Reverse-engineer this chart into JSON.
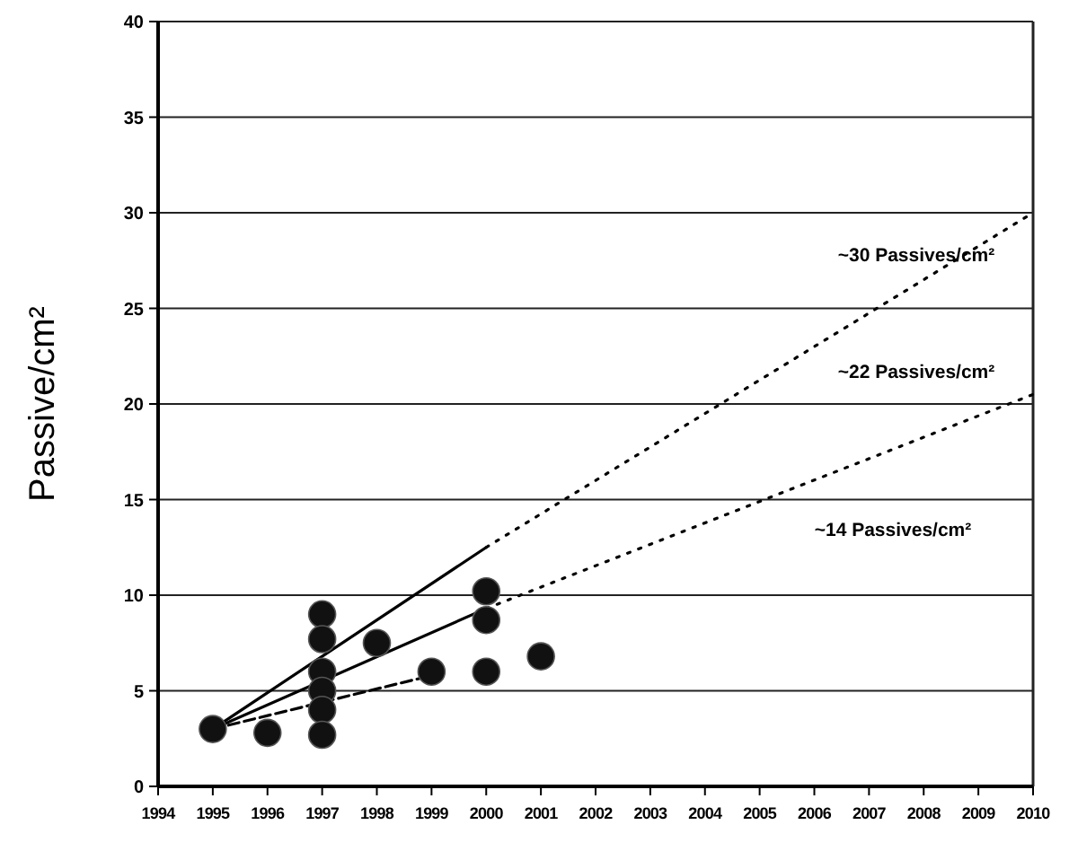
{
  "chart_data": {
    "type": "scatter",
    "ylabel": "Passive/cm²",
    "xlim": [
      1994,
      2010
    ],
    "xticks": [
      1994,
      1995,
      1996,
      1997,
      1998,
      1999,
      2000,
      2001,
      2002,
      2003,
      2004,
      2005,
      2006,
      2007,
      2008,
      2009,
      2010
    ],
    "ylim": [
      0,
      40
    ],
    "yticks": [
      0,
      5,
      10,
      15,
      20,
      25,
      30,
      35,
      40
    ],
    "grid": "y",
    "series": [
      {
        "type": "line",
        "color": "#000000",
        "line_style": "solid",
        "x": [
          1995,
          2000
        ],
        "values": [
          3,
          12.5
        ]
      },
      {
        "type": "line",
        "color": "#000000",
        "line_style": "dotted",
        "x": [
          2000,
          2010
        ],
        "values": [
          12.5,
          30
        ]
      },
      {
        "type": "line",
        "color": "#000000",
        "line_style": "solid",
        "x": [
          1995,
          2000
        ],
        "values": [
          3,
          9.3
        ]
      },
      {
        "type": "line",
        "color": "#000000",
        "line_style": "dotted",
        "x": [
          2000,
          2010
        ],
        "values": [
          9.3,
          20.5
        ]
      },
      {
        "type": "line",
        "color": "#000000",
        "line_style": "dashed",
        "x": [
          1995,
          1999
        ],
        "values": [
          3,
          5.8
        ]
      },
      {
        "color": "#111111",
        "marker": "circle",
        "x": [
          1995,
          1996,
          1997,
          1997,
          1997,
          1997,
          1997,
          1997,
          1998,
          1999,
          2000,
          2000,
          2000,
          2001
        ],
        "values": [
          3,
          2.8,
          9,
          7.7,
          6,
          5,
          4,
          2.7,
          7.5,
          6,
          10.2,
          8.7,
          6,
          6.8
        ]
      }
    ],
    "annotations": [
      "~30 Passives/cm²",
      "~22 Passives/cm²",
      "~14 Passives/cm²"
    ]
  }
}
